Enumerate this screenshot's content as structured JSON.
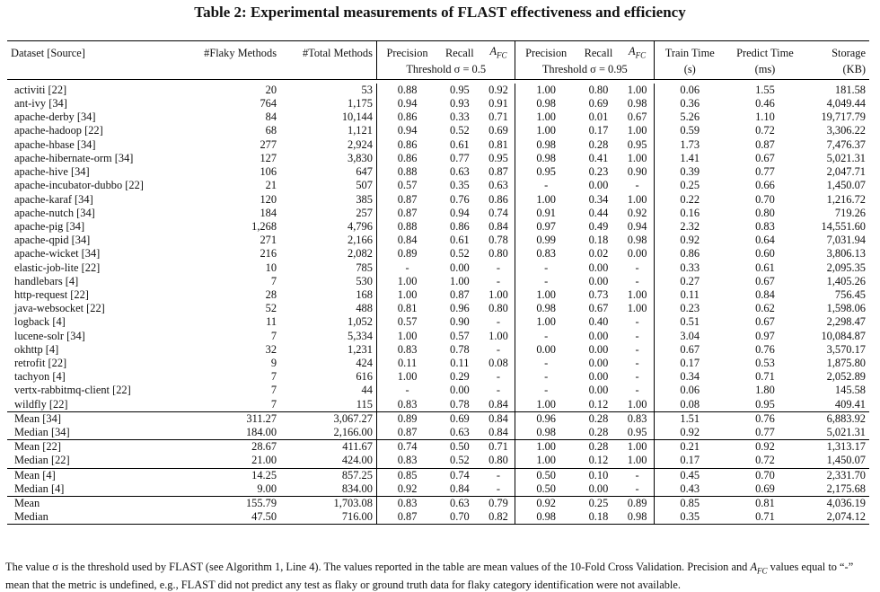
{
  "caption": "Table 2: Experimental measurements of FLAST effectiveness and efficiency",
  "headers": {
    "dataset": "Dataset [Source]",
    "flaky": "#Flaky Methods",
    "total": "#Total Methods",
    "precision": "Precision",
    "recall": "Recall",
    "afc_main": "A",
    "afc_sub": "FC",
    "threshold1": "Threshold σ = 0.5",
    "threshold2": "Threshold σ = 0.95",
    "train": "Train Time",
    "train_unit": "(s)",
    "predict": "Predict Time",
    "predict_unit": "(ms)",
    "storage": "Storage",
    "storage_unit": "(KB)"
  },
  "rows": [
    [
      "activiti [22]",
      "20",
      "53",
      "0.88",
      "0.95",
      "0.92",
      "1.00",
      "0.80",
      "1.00",
      "0.06",
      "1.55",
      "181.58"
    ],
    [
      "ant-ivy [34]",
      "764",
      "1,175",
      "0.94",
      "0.93",
      "0.91",
      "0.98",
      "0.69",
      "0.98",
      "0.36",
      "0.46",
      "4,049.44"
    ],
    [
      "apache-derby [34]",
      "84",
      "10,144",
      "0.86",
      "0.33",
      "0.71",
      "1.00",
      "0.01",
      "0.67",
      "5.26",
      "1.10",
      "19,717.79"
    ],
    [
      "apache-hadoop [22]",
      "68",
      "1,121",
      "0.94",
      "0.52",
      "0.69",
      "1.00",
      "0.17",
      "1.00",
      "0.59",
      "0.72",
      "3,306.22"
    ],
    [
      "apache-hbase [34]",
      "277",
      "2,924",
      "0.86",
      "0.61",
      "0.81",
      "0.98",
      "0.28",
      "0.95",
      "1.73",
      "0.87",
      "7,476.37"
    ],
    [
      "apache-hibernate-orm [34]",
      "127",
      "3,830",
      "0.86",
      "0.77",
      "0.95",
      "0.98",
      "0.41",
      "1.00",
      "1.41",
      "0.67",
      "5,021.31"
    ],
    [
      "apache-hive [34]",
      "106",
      "647",
      "0.88",
      "0.63",
      "0.87",
      "0.95",
      "0.23",
      "0.90",
      "0.39",
      "0.77",
      "2,047.71"
    ],
    [
      "apache-incubator-dubbo [22]",
      "21",
      "507",
      "0.57",
      "0.35",
      "0.63",
      "-",
      "0.00",
      "-",
      "0.25",
      "0.66",
      "1,450.07"
    ],
    [
      "apache-karaf [34]",
      "120",
      "385",
      "0.87",
      "0.76",
      "0.86",
      "1.00",
      "0.34",
      "1.00",
      "0.22",
      "0.70",
      "1,216.72"
    ],
    [
      "apache-nutch [34]",
      "184",
      "257",
      "0.87",
      "0.94",
      "0.74",
      "0.91",
      "0.44",
      "0.92",
      "0.16",
      "0.80",
      "719.26"
    ],
    [
      "apache-pig [34]",
      "1,268",
      "4,796",
      "0.88",
      "0.86",
      "0.84",
      "0.97",
      "0.49",
      "0.94",
      "2.32",
      "0.83",
      "14,551.60"
    ],
    [
      "apache-qpid [34]",
      "271",
      "2,166",
      "0.84",
      "0.61",
      "0.78",
      "0.99",
      "0.18",
      "0.98",
      "0.92",
      "0.64",
      "7,031.94"
    ],
    [
      "apache-wicket [34]",
      "216",
      "2,082",
      "0.89",
      "0.52",
      "0.80",
      "0.83",
      "0.02",
      "0.00",
      "0.86",
      "0.60",
      "3,806.13"
    ],
    [
      "elastic-job-lite [22]",
      "10",
      "785",
      "-",
      "0.00",
      "-",
      "-",
      "0.00",
      "-",
      "0.33",
      "0.61",
      "2,095.35"
    ],
    [
      "handlebars [4]",
      "7",
      "530",
      "1.00",
      "1.00",
      "-",
      "-",
      "0.00",
      "-",
      "0.27",
      "0.67",
      "1,405.26"
    ],
    [
      "http-request [22]",
      "28",
      "168",
      "1.00",
      "0.87",
      "1.00",
      "1.00",
      "0.73",
      "1.00",
      "0.11",
      "0.84",
      "756.45"
    ],
    [
      "java-websocket [22]",
      "52",
      "488",
      "0.81",
      "0.96",
      "0.80",
      "0.98",
      "0.67",
      "1.00",
      "0.23",
      "0.62",
      "1,598.06"
    ],
    [
      "logback [4]",
      "11",
      "1,052",
      "0.57",
      "0.90",
      "-",
      "1.00",
      "0.40",
      "-",
      "0.51",
      "0.67",
      "2,298.47"
    ],
    [
      "lucene-solr [34]",
      "7",
      "5,334",
      "1.00",
      "0.57",
      "1.00",
      "-",
      "0.00",
      "-",
      "3.04",
      "0.97",
      "10,084.87"
    ],
    [
      "okhttp [4]",
      "32",
      "1,231",
      "0.83",
      "0.78",
      "-",
      "0.00",
      "0.00",
      "-",
      "0.67",
      "0.76",
      "3,570.17"
    ],
    [
      "retrofit [22]",
      "9",
      "424",
      "0.11",
      "0.11",
      "0.08",
      "-",
      "0.00",
      "-",
      "0.17",
      "0.53",
      "1,875.80"
    ],
    [
      "tachyon [4]",
      "7",
      "616",
      "1.00",
      "0.29",
      "-",
      "-",
      "0.00",
      "-",
      "0.34",
      "0.71",
      "2,052.89"
    ],
    [
      "vertx-rabbitmq-client [22]",
      "7",
      "44",
      "-",
      "0.00",
      "-",
      "-",
      "0.00",
      "-",
      "0.06",
      "1.80",
      "145.58"
    ],
    [
      "wildfly [22]",
      "7",
      "115",
      "0.83",
      "0.78",
      "0.84",
      "1.00",
      "0.12",
      "1.00",
      "0.08",
      "0.95",
      "409.41"
    ]
  ],
  "summary_groups": [
    [
      [
        "Mean [34]",
        "311.27",
        "3,067.27",
        "0.89",
        "0.69",
        "0.84",
        "0.96",
        "0.28",
        "0.83",
        "1.51",
        "0.76",
        "6,883.92"
      ],
      [
        "Median [34]",
        "184.00",
        "2,166.00",
        "0.87",
        "0.63",
        "0.84",
        "0.98",
        "0.28",
        "0.95",
        "0.92",
        "0.77",
        "5,021.31"
      ]
    ],
    [
      [
        "Mean [22]",
        "28.67",
        "411.67",
        "0.74",
        "0.50",
        "0.71",
        "1.00",
        "0.28",
        "1.00",
        "0.21",
        "0.92",
        "1,313.17"
      ],
      [
        "Median [22]",
        "21.00",
        "424.00",
        "0.83",
        "0.52",
        "0.80",
        "1.00",
        "0.12",
        "1.00",
        "0.17",
        "0.72",
        "1,450.07"
      ]
    ],
    [
      [
        "Mean [4]",
        "14.25",
        "857.25",
        "0.85",
        "0.74",
        "-",
        "0.50",
        "0.10",
        "-",
        "0.45",
        "0.70",
        "2,331.70"
      ],
      [
        "Median [4]",
        "9.00",
        "834.00",
        "0.92",
        "0.84",
        "-",
        "0.50",
        "0.00",
        "-",
        "0.43",
        "0.69",
        "2,175.68"
      ]
    ],
    [
      [
        "Mean",
        "155.79",
        "1,703.08",
        "0.83",
        "0.63",
        "0.79",
        "0.92",
        "0.25",
        "0.89",
        "0.85",
        "0.81",
        "4,036.19"
      ],
      [
        "Median",
        "47.50",
        "716.00",
        "0.87",
        "0.70",
        "0.82",
        "0.98",
        "0.18",
        "0.98",
        "0.35",
        "0.71",
        "2,074.12"
      ]
    ]
  ],
  "footnote": {
    "part1": "The value σ is the threshold used by FLAST (see Algorithm 1, Line 4). The values reported in the table are mean values of the 10-Fold Cross Validation. Precision and ",
    "afc_main": "A",
    "afc_sub": "FC",
    "part2": " values equal to “-” mean that the metric is undefined, e.g., FLAST did not predict any test as flaky or ground truth data for flaky category identification were not available."
  }
}
